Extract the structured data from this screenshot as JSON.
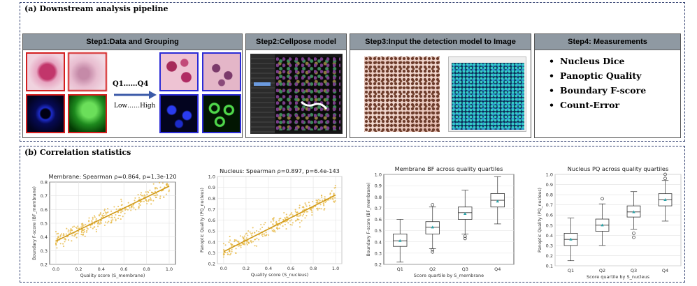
{
  "panel_a": {
    "title": "(a) Downstream analysis pipeline",
    "steps": [
      {
        "label": "Step1:Data and Grouping"
      },
      {
        "label": "Step2:Cellpose model"
      },
      {
        "label": "Step3:Input the detection model to Image"
      },
      {
        "label": "Step4: Measurements"
      }
    ],
    "quartile_label": "Q1……Q4",
    "quartile_sub": "Low……High",
    "measurements": [
      "Nucleus Dice",
      "Panoptic Quality",
      "Boundary F-score",
      "Count-Error"
    ],
    "colors": {
      "header": "#8f99a2",
      "border_red": "#d41f1f",
      "border_blue": "#2b2bd6",
      "arrow": "#3b5aa8"
    }
  },
  "panel_b": {
    "title": "(b) Correlation statistics"
  },
  "chart_data": [
    {
      "type": "scatter",
      "title": "Membrane: Spearman ρ=0.864, p=1.3e-120",
      "xlabel": "Quality score (S_membrane)",
      "ylabel": "Boundary F-score (BF_membrane)",
      "xlim": [
        0.0,
        1.0
      ],
      "ylim": [
        0.2,
        0.8
      ],
      "xticks": [
        "0.0",
        "0.2",
        "0.4",
        "0.6",
        "0.8",
        "1.0"
      ],
      "yticks": [
        "0.2",
        "0.3",
        "0.4",
        "0.5",
        "0.6",
        "0.7",
        "0.8"
      ],
      "trend": {
        "x": [
          0.0,
          1.0
        ],
        "y": [
          0.37,
          0.77
        ]
      },
      "point_color": "#e5b43a",
      "grid": true
    },
    {
      "type": "scatter",
      "title": "Nucleus: Spearman ρ=0.897, p=6.4e-143",
      "xlabel": "Quality score (S_nucleus)",
      "ylabel": "Panoptic Quality (PQ_nucleus)",
      "xlim": [
        0.0,
        1.0
      ],
      "ylim": [
        0.2,
        1.0
      ],
      "xticks": [
        "0.0",
        "0.2",
        "0.4",
        "0.6",
        "0.8",
        "1.0"
      ],
      "yticks": [
        "0.2",
        "0.3",
        "0.4",
        "0.5",
        "0.6",
        "0.7",
        "0.8",
        "0.9",
        "1.0"
      ],
      "trend": {
        "x": [
          0.0,
          1.0
        ],
        "y": [
          0.31,
          0.83
        ]
      },
      "point_color": "#e5b43a",
      "grid": true
    },
    {
      "type": "box",
      "title": "Membrane BF across quality quartiles",
      "xlabel": "Score quartile by S_membrane",
      "ylabel": "Boundary F-score (BF_membrane)",
      "categories": [
        "Q1",
        "Q2",
        "Q3",
        "Q4"
      ],
      "ylim": [
        0.2,
        1.0
      ],
      "yticks": [
        "0.2",
        "0.3",
        "0.4",
        "0.5",
        "0.6",
        "0.7",
        "0.8",
        "0.9",
        "1.0"
      ],
      "boxes": [
        {
          "min": 0.22,
          "q1": 0.36,
          "median": 0.41,
          "q3": 0.47,
          "max": 0.6,
          "mean": 0.41,
          "outliers": []
        },
        {
          "min": 0.34,
          "q1": 0.47,
          "median": 0.53,
          "q3": 0.58,
          "max": 0.71,
          "mean": 0.53,
          "outliers": [
            0.73,
            0.33,
            0.31
          ]
        },
        {
          "min": 0.47,
          "q1": 0.6,
          "median": 0.66,
          "q3": 0.71,
          "max": 0.86,
          "mean": 0.65,
          "outliers": [
            0.45,
            0.43
          ]
        },
        {
          "min": 0.56,
          "q1": 0.71,
          "median": 0.77,
          "q3": 0.83,
          "max": 0.98,
          "mean": 0.76,
          "outliers": []
        }
      ],
      "grid": true
    },
    {
      "type": "box",
      "title": "Nucleus PQ across quality quartiles",
      "xlabel": "Score quartile by S_nucleus",
      "ylabel": "Panoptic Quality (PQ_nucleus)",
      "categories": [
        "Q1",
        "Q2",
        "Q3",
        "Q4"
      ],
      "ylim": [
        0.1,
        1.0
      ],
      "yticks": [
        "0.1",
        "0.2",
        "0.3",
        "0.4",
        "0.5",
        "0.6",
        "0.7",
        "0.8",
        "0.9",
        "1.0"
      ],
      "boxes": [
        {
          "min": 0.15,
          "q1": 0.3,
          "median": 0.36,
          "q3": 0.42,
          "max": 0.57,
          "mean": 0.36,
          "outliers": []
        },
        {
          "min": 0.3,
          "q1": 0.44,
          "median": 0.5,
          "q3": 0.56,
          "max": 0.71,
          "mean": 0.5,
          "outliers": [
            0.76
          ]
        },
        {
          "min": 0.46,
          "q1": 0.58,
          "median": 0.63,
          "q3": 0.69,
          "max": 0.83,
          "mean": 0.63,
          "outliers": [
            0.42,
            0.38
          ]
        },
        {
          "min": 0.54,
          "q1": 0.69,
          "median": 0.75,
          "q3": 0.81,
          "max": 0.94,
          "mean": 0.75,
          "outliers": [
            1.0,
            0.96
          ]
        }
      ],
      "grid": true
    }
  ]
}
